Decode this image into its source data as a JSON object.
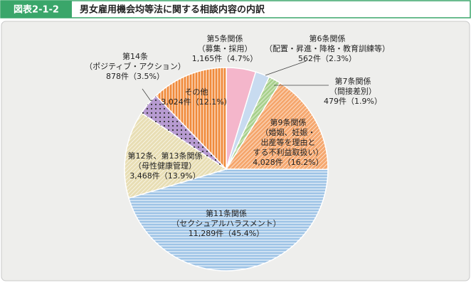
{
  "header": {
    "figure_no": "図表2-1-2",
    "title": "男女雇用機会均等法に関する相談内容の内訳"
  },
  "chart_data": {
    "type": "pie",
    "categories": [
      "第5条関係",
      "第6条関係",
      "第7条関係",
      "第9条関係",
      "第11条関係",
      "第12条、第13条関係",
      "第14条",
      "その他"
    ],
    "category_notes": [
      [
        "（募集・採用）"
      ],
      [
        "（配置・昇進・降格・教育訓練等）"
      ],
      [
        "（間接差別）"
      ],
      [
        "（婚姻、妊娠・",
        "出産等を理由と",
        "する不利益取扱い）"
      ],
      [
        "（セクシュアルハラスメント）"
      ],
      [
        "（母性健康管理）"
      ],
      [
        "（ポジティブ・アクション）"
      ],
      []
    ],
    "values": [
      1165,
      562,
      479,
      4028,
      11289,
      3468,
      878,
      3024
    ],
    "value_labels": [
      "1,165件",
      "562件",
      "479件",
      "4,028件",
      "11,289件",
      "3,468件",
      "878件",
      "3,024件"
    ],
    "percent_labels": [
      "（4.7%）",
      "（2.3%）",
      "（1.9%）",
      "（16.2%）",
      "（45.4%）",
      "（13.9%）",
      "（3.5%）",
      "（12.1%）"
    ],
    "colors": [
      "#f4b6cb",
      "#c8dbf0",
      "#a9d18e",
      "#f5a76e",
      "#9dc3e6",
      "#e8deb4",
      "#b79bd1",
      "#f08a3a"
    ],
    "patterns": [
      "none",
      "none",
      "diagonal",
      "diagonal",
      "horizontal",
      "diagonal",
      "dots",
      "vertical"
    ],
    "start_angle": 90,
    "direction": "clockwise"
  }
}
